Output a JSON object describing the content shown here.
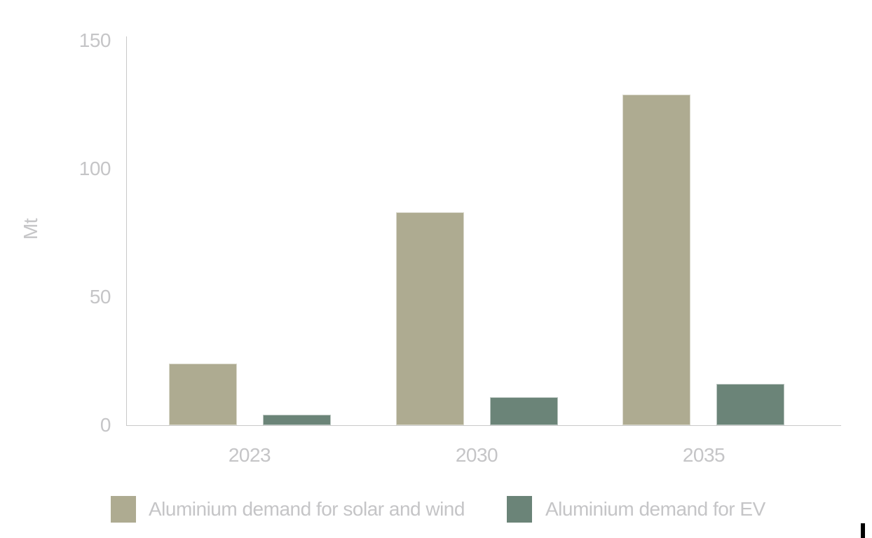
{
  "chart_data": {
    "type": "bar",
    "categories": [
      "2023",
      "2030",
      "2035"
    ],
    "series": [
      {
        "name": "Aluminium demand for solar and wind",
        "color": "#aeab91",
        "values": [
          24,
          83,
          129
        ]
      },
      {
        "name": "Aluminium demand for EV",
        "color": "#6b8478",
        "values": [
          4,
          11,
          16
        ]
      }
    ],
    "title": "",
    "xlabel": "",
    "ylabel": "Mt",
    "ylim": [
      0,
      150
    ],
    "yticks": [
      0,
      50,
      100,
      150
    ],
    "grid": false,
    "legend_position": "bottom"
  },
  "colors": {
    "series_solar_wind": "#aeab91",
    "series_ev": "#6b8478",
    "text": "#c5c5c7",
    "axis_line": "#c9c9c9",
    "background": "#ffffff"
  }
}
